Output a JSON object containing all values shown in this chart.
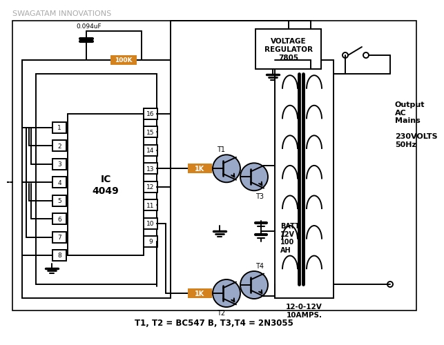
{
  "bg_color": "#ffffff",
  "line_color": "#000000",
  "resistor_color": "#d4821e",
  "transistor_fill": "#9aa8c8",
  "title_text": "SWAGATAM INNOVATIONS",
  "title_color": "#aaaaaa",
  "bottom_text": "T1, T2 = BC547 B, T3,T4 = 2N3055",
  "ic_label": "IC\n4049",
  "vr_label": "VOLTAGE\nREGULATOR\n7805",
  "batt_label": "BATT.\n12V\n100\nAH",
  "transformer_label": "12-0-12V\n10AMPS.",
  "output_label": "Output\nAC\nMains\n\n230VOLTS\n50Hz",
  "pin_labels_left": [
    "1",
    "2",
    "3",
    "4",
    "5",
    "6",
    "7",
    "8"
  ],
  "pin_labels_right": [
    "16",
    "15",
    "14",
    "13",
    "12",
    "11",
    "10",
    "9"
  ]
}
